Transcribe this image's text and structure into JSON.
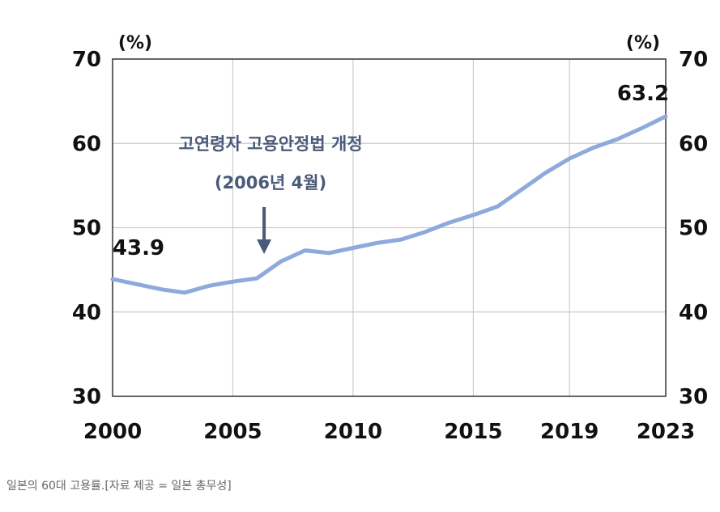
{
  "chart_data": {
    "type": "line",
    "title": "",
    "xlabel": "",
    "ylabel": "",
    "y_unit_left": "(%)",
    "y_unit_right": "(%)",
    "ylim": [
      30,
      70
    ],
    "yticks": [
      30,
      40,
      50,
      60,
      70
    ],
    "xlim": [
      2000,
      2023
    ],
    "xticks": [
      2000,
      2005,
      2010,
      2015,
      2019,
      2023
    ],
    "grid": true,
    "series": [
      {
        "color": "#8eaadb",
        "x": [
          2000,
          2001,
          2002,
          2003,
          2004,
          2005,
          2006,
          2007,
          2008,
          2009,
          2010,
          2011,
          2012,
          2013,
          2014,
          2015,
          2016,
          2017,
          2018,
          2019,
          2020,
          2021,
          2022,
          2023
        ],
        "values": [
          43.9,
          43.3,
          42.7,
          42.3,
          43.1,
          43.6,
          44.0,
          46.0,
          47.3,
          47.0,
          47.6,
          48.2,
          48.6,
          49.5,
          50.6,
          51.5,
          52.5,
          54.5,
          56.5,
          58.2,
          59.5,
          60.5,
          61.8,
          63.2
        ]
      }
    ],
    "data_labels": [
      {
        "x": 2000,
        "text": "43.9"
      },
      {
        "x": 2023,
        "text": "63.2"
      }
    ],
    "annotation": {
      "line1": "고연령자 고용안정법 개정",
      "line2": "(2006년 4월)",
      "arrow_x": 2006.3
    }
  },
  "caption": "일본의 60대 고용률.[자료 제공 = 일본 총무성]",
  "colors": {
    "line": "#8eaadb",
    "annotation": "#4a5a78",
    "grid": "#cccccc",
    "frame": "#333333"
  }
}
